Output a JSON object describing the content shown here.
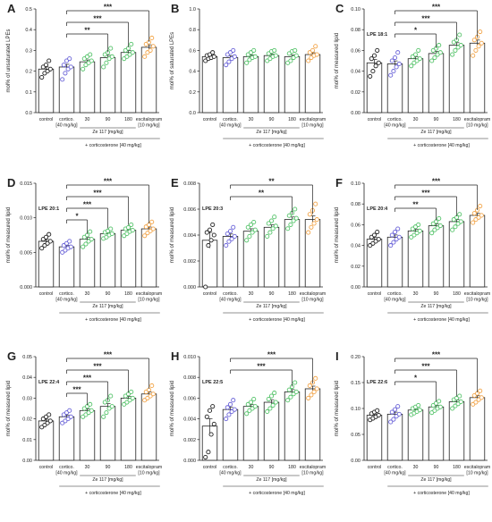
{
  "colors": {
    "control": "#222222",
    "cortico": "#6a63d8",
    "ze": "#55c36a",
    "escitalopram": "#f2a54a",
    "axis": "#222222"
  },
  "chart_data": [
    {
      "panel": "A",
      "type": "bar",
      "ylabel": "mol% of unsaturated LPEs",
      "ylim": [
        0,
        0.5
      ],
      "yticks": [
        "0.0",
        "0.1",
        "0.2",
        "0.3",
        "0.4",
        "0.5"
      ],
      "categories": [
        "control",
        "cortico.",
        "30",
        "90",
        "180",
        "escitalopram"
      ],
      "category_sublabels": [
        "",
        "[40 mg/kg]",
        "",
        "",
        "",
        "[10 mg/kg]"
      ],
      "group_label": "Ze 117 [mg/kg]",
      "treatment_label": "+ corticosterone [40 mg/kg]",
      "values": [
        0.21,
        0.22,
        0.245,
        0.265,
        0.29,
        0.315
      ],
      "points": [
        [
          0.17,
          0.19,
          0.2,
          0.21,
          0.22,
          0.23,
          0.25
        ],
        [
          0.16,
          0.19,
          0.21,
          0.22,
          0.23,
          0.25,
          0.26
        ],
        [
          0.21,
          0.23,
          0.24,
          0.25,
          0.26,
          0.27,
          0.28
        ],
        [
          0.22,
          0.24,
          0.26,
          0.27,
          0.28,
          0.29,
          0.31
        ],
        [
          0.26,
          0.27,
          0.28,
          0.29,
          0.3,
          0.31,
          0.33
        ],
        [
          0.27,
          0.29,
          0.3,
          0.32,
          0.33,
          0.34,
          0.36
        ]
      ],
      "brackets": [
        {
          "to": 5,
          "label": "***"
        },
        {
          "to": 4,
          "label": "***"
        },
        {
          "to": 3,
          "label": "**"
        }
      ]
    },
    {
      "panel": "B",
      "type": "bar",
      "ylabel": "mol% of saturated LPEs",
      "ylim": [
        0,
        1.0
      ],
      "yticks": [
        "0.0",
        "0.2",
        "0.4",
        "0.6",
        "0.8",
        "1.0"
      ],
      "categories": [
        "control",
        "cortico.",
        "30",
        "90",
        "180",
        "escitalopram"
      ],
      "category_sublabels": [
        "",
        "[40 mg/kg]",
        "",
        "",
        "",
        "[10 mg/kg]"
      ],
      "group_label": "Ze 117 [mg/kg]",
      "treatment_label": "+ corticosterone [40 mg/kg]",
      "values": [
        0.54,
        0.53,
        0.54,
        0.55,
        0.54,
        0.56
      ],
      "points": [
        [
          0.5,
          0.52,
          0.53,
          0.54,
          0.55,
          0.56,
          0.58
        ],
        [
          0.46,
          0.49,
          0.52,
          0.54,
          0.56,
          0.58,
          0.6
        ],
        [
          0.48,
          0.51,
          0.53,
          0.54,
          0.56,
          0.58,
          0.6
        ],
        [
          0.5,
          0.52,
          0.54,
          0.55,
          0.57,
          0.59,
          0.6
        ],
        [
          0.48,
          0.5,
          0.53,
          0.55,
          0.57,
          0.59,
          0.6
        ],
        [
          0.5,
          0.53,
          0.55,
          0.56,
          0.58,
          0.6,
          0.64
        ]
      ],
      "brackets": []
    },
    {
      "panel": "C",
      "type": "bar",
      "ylabel": "mol% of measured lipid",
      "lipid": "LPE 18:1",
      "ylim": [
        0,
        0.1
      ],
      "yticks": [
        "0.00",
        "0.02",
        "0.04",
        "0.06",
        "0.08",
        "0.10"
      ],
      "categories": [
        "control",
        "cortico.",
        "30",
        "90",
        "180",
        "escitalopram"
      ],
      "category_sublabels": [
        "",
        "[40 mg/kg]",
        "",
        "",
        "",
        "[10 mg/kg]"
      ],
      "group_label": "Ze 117 [mg/kg]",
      "treatment_label": "+ corticosterone [40 mg/kg]",
      "values": [
        0.048,
        0.047,
        0.052,
        0.057,
        0.065,
        0.067
      ],
      "points": [
        [
          0.035,
          0.04,
          0.045,
          0.048,
          0.052,
          0.055,
          0.06
        ],
        [
          0.036,
          0.04,
          0.044,
          0.047,
          0.05,
          0.053,
          0.058
        ],
        [
          0.045,
          0.048,
          0.05,
          0.052,
          0.054,
          0.056,
          0.06
        ],
        [
          0.05,
          0.053,
          0.056,
          0.058,
          0.06,
          0.062,
          0.065
        ],
        [
          0.056,
          0.06,
          0.063,
          0.065,
          0.068,
          0.07,
          0.075
        ],
        [
          0.055,
          0.06,
          0.064,
          0.067,
          0.07,
          0.073,
          0.078
        ]
      ],
      "brackets": [
        {
          "to": 5,
          "label": "***"
        },
        {
          "to": 4,
          "label": "***"
        },
        {
          "to": 3,
          "label": "*"
        }
      ]
    },
    {
      "panel": "D",
      "type": "bar",
      "ylabel": "mol% of measured lipid",
      "lipid": "LPE 20:1",
      "ylim": [
        0,
        0.015
      ],
      "yticks": [
        "0.000",
        "0.005",
        "0.010",
        "0.015"
      ],
      "categories": [
        "control",
        "cortico.",
        "30",
        "90",
        "180",
        "escitalopram"
      ],
      "category_sublabels": [
        "",
        "[40 mg/kg]",
        "",
        "",
        "",
        "[10 mg/kg]"
      ],
      "group_label": "Ze 117 [mg/kg]",
      "treatment_label": "+ corticosterone [40 mg/kg]",
      "values": [
        0.0066,
        0.0058,
        0.0069,
        0.0077,
        0.0082,
        0.0084
      ],
      "points": [
        [
          0.0056,
          0.006,
          0.0063,
          0.0066,
          0.0069,
          0.0072,
          0.0076
        ],
        [
          0.005,
          0.0053,
          0.0056,
          0.0058,
          0.006,
          0.0063,
          0.0066
        ],
        [
          0.0058,
          0.0062,
          0.0066,
          0.0069,
          0.0072,
          0.0075,
          0.008
        ],
        [
          0.007,
          0.0072,
          0.0075,
          0.0077,
          0.0079,
          0.0081,
          0.0084
        ],
        [
          0.0074,
          0.0077,
          0.008,
          0.0082,
          0.0084,
          0.0086,
          0.009
        ],
        [
          0.0074,
          0.0078,
          0.0081,
          0.0084,
          0.0087,
          0.009,
          0.0094
        ]
      ],
      "brackets": [
        {
          "to": 5,
          "label": "***"
        },
        {
          "to": 4,
          "label": "***"
        },
        {
          "to": 3,
          "label": "***"
        },
        {
          "to": 2,
          "label": "*"
        }
      ]
    },
    {
      "panel": "E",
      "type": "bar",
      "ylabel": "mol% of measured lipid",
      "lipid": "LPE 20:3",
      "ylim": [
        0,
        0.008
      ],
      "yticks": [
        "0.000",
        "0.002",
        "0.004",
        "0.006",
        "0.008"
      ],
      "categories": [
        "control",
        "cortico.",
        "30",
        "90",
        "180",
        "escitalopram"
      ],
      "category_sublabels": [
        "",
        "[40 mg/kg]",
        "",
        "",
        "",
        "[10 mg/kg]"
      ],
      "group_label": "Ze 117 [mg/kg]",
      "treatment_label": "+ corticosterone [40 mg/kg]",
      "values": [
        0.0036,
        0.0039,
        0.0043,
        0.0046,
        0.0052,
        0.0052
      ],
      "points": [
        [
          0.0,
          0.0032,
          0.0036,
          0.004,
          0.0042,
          0.0044,
          0.0048
        ],
        [
          0.0032,
          0.0035,
          0.0037,
          0.0039,
          0.0041,
          0.0043,
          0.0046
        ],
        [
          0.0036,
          0.0039,
          0.0042,
          0.0044,
          0.0046,
          0.0048,
          0.005
        ],
        [
          0.0039,
          0.0042,
          0.0045,
          0.0047,
          0.0049,
          0.0051,
          0.0054
        ],
        [
          0.0045,
          0.0048,
          0.0051,
          0.0053,
          0.0055,
          0.0057,
          0.006
        ],
        [
          0.0042,
          0.0046,
          0.0049,
          0.0052,
          0.0056,
          0.0059,
          0.0064
        ]
      ],
      "brackets": [
        {
          "to": 5,
          "label": "**"
        },
        {
          "to": 4,
          "label": "**"
        }
      ]
    },
    {
      "panel": "F",
      "type": "bar",
      "ylabel": "mol% of measured lipid",
      "lipid": "LPE 20:4",
      "ylim": [
        0,
        0.1
      ],
      "yticks": [
        "0.00",
        "0.02",
        "0.04",
        "0.06",
        "0.08",
        "0.10"
      ],
      "categories": [
        "control",
        "cortico.",
        "30",
        "90",
        "180",
        "escitalopram"
      ],
      "category_sublabels": [
        "",
        "[40 mg/kg]",
        "",
        "",
        "",
        "[10 mg/kg]"
      ],
      "group_label": "Ze 117 [mg/kg]",
      "treatment_label": "+ corticosterone [40 mg/kg]",
      "values": [
        0.046,
        0.048,
        0.054,
        0.059,
        0.063,
        0.069
      ],
      "points": [
        [
          0.04,
          0.042,
          0.044,
          0.046,
          0.048,
          0.05,
          0.053
        ],
        [
          0.04,
          0.043,
          0.046,
          0.048,
          0.05,
          0.053,
          0.056
        ],
        [
          0.048,
          0.05,
          0.052,
          0.054,
          0.056,
          0.058,
          0.06
        ],
        [
          0.052,
          0.055,
          0.057,
          0.059,
          0.061,
          0.063,
          0.066
        ],
        [
          0.055,
          0.058,
          0.061,
          0.063,
          0.065,
          0.067,
          0.07
        ],
        [
          0.062,
          0.065,
          0.067,
          0.069,
          0.071,
          0.074,
          0.078
        ]
      ],
      "brackets": [
        {
          "to": 5,
          "label": "***"
        },
        {
          "to": 4,
          "label": "***"
        },
        {
          "to": 3,
          "label": "**"
        }
      ]
    },
    {
      "panel": "G",
      "type": "bar",
      "ylabel": "mol% of measured lipid",
      "lipid": "LPE 22:4",
      "ylim": [
        0,
        0.05
      ],
      "yticks": [
        "0.00",
        "0.01",
        "0.02",
        "0.03",
        "0.04",
        "0.05"
      ],
      "categories": [
        "control",
        "cortico.",
        "30",
        "90",
        "180",
        "escitalopram"
      ],
      "category_sublabels": [
        "",
        "[40 mg/kg]",
        "",
        "",
        "",
        "[10 mg/kg]"
      ],
      "group_label": "Ze 117 [mg/kg]",
      "treatment_label": "+ corticosterone [40 mg/kg]",
      "values": [
        0.019,
        0.021,
        0.024,
        0.026,
        0.03,
        0.032
      ],
      "points": [
        [
          0.016,
          0.017,
          0.018,
          0.019,
          0.02,
          0.021,
          0.022
        ],
        [
          0.018,
          0.019,
          0.02,
          0.021,
          0.022,
          0.023,
          0.024
        ],
        [
          0.021,
          0.022,
          0.023,
          0.024,
          0.025,
          0.026,
          0.027
        ],
        [
          0.021,
          0.023,
          0.025,
          0.026,
          0.028,
          0.029,
          0.031
        ],
        [
          0.027,
          0.028,
          0.029,
          0.03,
          0.031,
          0.032,
          0.033
        ],
        [
          0.029,
          0.03,
          0.031,
          0.032,
          0.033,
          0.034,
          0.036
        ]
      ],
      "brackets": [
        {
          "to": 5,
          "label": "***"
        },
        {
          "to": 4,
          "label": "***"
        },
        {
          "to": 3,
          "label": "***"
        },
        {
          "to": 2,
          "label": "***"
        }
      ]
    },
    {
      "panel": "H",
      "type": "bar",
      "ylabel": "mol% of measured lipid",
      "lipid": "LPE 22:5",
      "ylim": [
        0,
        0.01
      ],
      "yticks": [
        "0.000",
        "0.002",
        "0.004",
        "0.006",
        "0.008",
        "0.010"
      ],
      "categories": [
        "control",
        "cortico.",
        "30",
        "90",
        "180",
        "escitalopram"
      ],
      "category_sublabels": [
        "",
        "[40 mg/kg]",
        "",
        "",
        "",
        "[10 mg/kg]"
      ],
      "group_label": "Ze 117 [mg/kg]",
      "treatment_label": "+ corticosterone [40 mg/kg]",
      "values": [
        0.0033,
        0.0049,
        0.0052,
        0.0056,
        0.0066,
        0.0069
      ],
      "points": [
        [
          0.0003,
          0.0008,
          0.0025,
          0.0035,
          0.0042,
          0.0048,
          0.0052
        ],
        [
          0.004,
          0.0044,
          0.0047,
          0.0049,
          0.0051,
          0.0054,
          0.0058
        ],
        [
          0.0045,
          0.0048,
          0.005,
          0.0052,
          0.0054,
          0.0056,
          0.0059
        ],
        [
          0.0047,
          0.005,
          0.0053,
          0.0056,
          0.0059,
          0.0062,
          0.0065
        ],
        [
          0.0058,
          0.0061,
          0.0064,
          0.0066,
          0.0068,
          0.0071,
          0.0075
        ],
        [
          0.006,
          0.0063,
          0.0066,
          0.0069,
          0.0072,
          0.0075,
          0.0079
        ]
      ],
      "brackets": [
        {
          "to": 5,
          "label": "***"
        },
        {
          "to": 4,
          "label": "***"
        }
      ]
    },
    {
      "panel": "I",
      "type": "bar",
      "ylabel": "mol% of measured lipid",
      "lipid": "LPE 22:6",
      "ylim": [
        0,
        0.2
      ],
      "yticks": [
        "0.00",
        "0.05",
        "0.10",
        "0.15",
        "0.20"
      ],
      "categories": [
        "control",
        "cortico.",
        "30",
        "90",
        "180",
        "escitalopram"
      ],
      "category_sublabels": [
        "",
        "[40 mg/kg]",
        "",
        "",
        "",
        "[10 mg/kg]"
      ],
      "group_label": "Ze 117 [mg/kg]",
      "treatment_label": "+ corticosterone [40 mg/kg]",
      "values": [
        0.087,
        0.089,
        0.097,
        0.103,
        0.113,
        0.121
      ],
      "points": [
        [
          0.078,
          0.081,
          0.084,
          0.087,
          0.09,
          0.093,
          0.096
        ],
        [
          0.074,
          0.079,
          0.085,
          0.089,
          0.093,
          0.098,
          0.104
        ],
        [
          0.088,
          0.091,
          0.094,
          0.097,
          0.1,
          0.103,
          0.106
        ],
        [
          0.092,
          0.096,
          0.1,
          0.103,
          0.106,
          0.11,
          0.114
        ],
        [
          0.1,
          0.105,
          0.109,
          0.113,
          0.117,
          0.12,
          0.124
        ],
        [
          0.108,
          0.112,
          0.117,
          0.121,
          0.125,
          0.129,
          0.134
        ]
      ],
      "brackets": [
        {
          "to": 5,
          "label": "***"
        },
        {
          "to": 4,
          "label": "***"
        },
        {
          "to": 3,
          "label": "*"
        }
      ]
    }
  ]
}
